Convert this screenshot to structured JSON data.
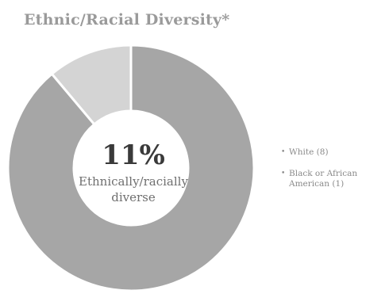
{
  "chart_data": {
    "type": "pie",
    "title": "Ethnic/Racial Diversity*",
    "categories": [
      "White",
      "Black or African American"
    ],
    "values": [
      8,
      1
    ],
    "colors": [
      "#a6a6a6",
      "#d4d4d4"
    ],
    "legend_labels": [
      "White (8)",
      "Black or African American (1)"
    ],
    "legend_position": "right",
    "center_value": "11%",
    "center_label": "Ethnically/racially diverse"
  }
}
